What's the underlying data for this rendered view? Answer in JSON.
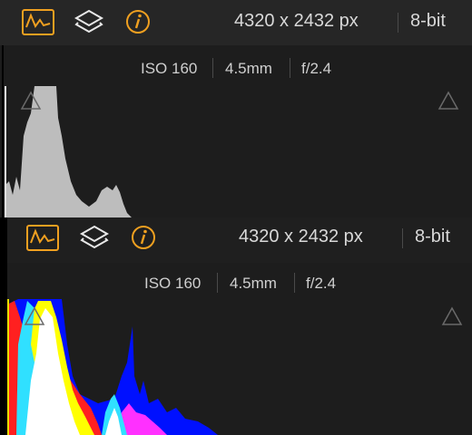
{
  "panels": [
    {
      "toolbar": {
        "dimensions": "4320 x 2432 px",
        "bit_depth": "8-bit"
      },
      "exif": {
        "iso": "ISO 160",
        "focal_length": "4.5mm",
        "aperture": "f/2.4"
      }
    },
    {
      "toolbar": {
        "dimensions": "4320 x 2432 px",
        "bit_depth": "8-bit"
      },
      "exif": {
        "iso": "ISO 160",
        "focal_length": "4.5mm",
        "aperture": "f/2.4"
      }
    }
  ]
}
